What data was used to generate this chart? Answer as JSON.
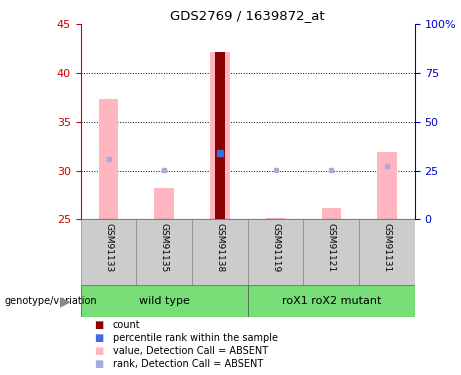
{
  "title": "GDS2769 / 1639872_at",
  "samples": [
    "GSM91133",
    "GSM91135",
    "GSM91138",
    "GSM91119",
    "GSM91121",
    "GSM91131"
  ],
  "ylim_left": [
    25,
    45
  ],
  "ylim_right": [
    0,
    100
  ],
  "yticks_left": [
    25,
    30,
    35,
    40,
    45
  ],
  "yticks_right": [
    0,
    25,
    50,
    75,
    100
  ],
  "ytick_labels_right": [
    "0",
    "25",
    "50",
    "75",
    "100%"
  ],
  "pink_bar_values": [
    37.3,
    28.2,
    42.2,
    25.1,
    26.2,
    31.9
  ],
  "pink_bar_base": 25,
  "blue_dot_values": [
    31.2,
    30.1,
    31.8,
    30.1,
    30.1,
    30.5
  ],
  "count_bar_sample": 2,
  "count_bar_value": 42.2,
  "count_bar_base": 25,
  "percentile_rank_sample": 2,
  "percentile_rank_value": 31.8,
  "pink_bar_width": 0.35,
  "count_bar_width": 0.18,
  "bar_color_pink": "#FFB6C1",
  "bar_color_count": "#8B0000",
  "dot_color_blue_rank": "#4169E1",
  "dot_color_blue_absent": "#AAAADD",
  "dot_size_rank": 5,
  "dot_size_absent": 3,
  "grid_color": "black",
  "left_tick_color": "#CC0000",
  "right_tick_color": "#0000CC",
  "sample_box_color": "#CCCCCC",
  "group_box_color": "#77DD77",
  "wild_type_label": "wild type",
  "mutant_label": "roX1 roX2 mutant",
  "genotype_label": "genotype/variation",
  "legend_items": [
    {
      "color": "#8B0000",
      "label": "count"
    },
    {
      "color": "#4169E1",
      "label": "percentile rank within the sample"
    },
    {
      "color": "#FFB6C1",
      "label": "value, Detection Call = ABSENT"
    },
    {
      "color": "#AAAADD",
      "label": "rank, Detection Call = ABSENT"
    }
  ]
}
